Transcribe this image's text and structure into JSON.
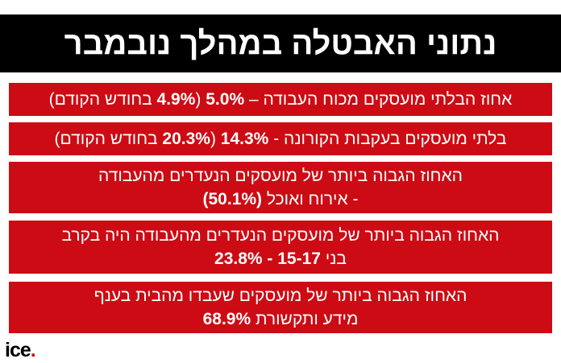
{
  "title": "נתוני האבטלה במהלך נובמבר",
  "colors": {
    "bar": "#cc0b14",
    "title_bg": "#000000",
    "text": "#ffffff"
  },
  "rows": [
    {
      "a": "אחוז הבלתי מועסקים מכוח העבודה – ",
      "b": "5.0%",
      "c": " (",
      "d": "4.9%",
      "e": " בחודש הקודם)"
    },
    {
      "a": "בלתי מועסקים בעקבות הקורונה - ",
      "b": "14.3%",
      "c": " (",
      "d": "20.3%",
      "e": " בחודש הקודם)"
    },
    {
      "line1": "האחוז הגבוה ביותר של מועסקים הנעדרים מהעבודה",
      "line2_a": "- אירוח ואוכל ",
      "line2_b": "(50.1%)"
    },
    {
      "line1": "האחוז הגבוה ביותר של מועסקים הנעדרים מהעבודה היה בקרב",
      "line2_a": "בני ",
      "line2_b": "15-17 - 23.8%"
    },
    {
      "line1": "האחוז הגבוה ביותר של מועסקים שעבדו מהבית בענף",
      "line2_a": "מידע ותקשורת ",
      "line2_b": "68.9%"
    }
  ],
  "logo": {
    "text": "ice",
    "dot": "."
  }
}
